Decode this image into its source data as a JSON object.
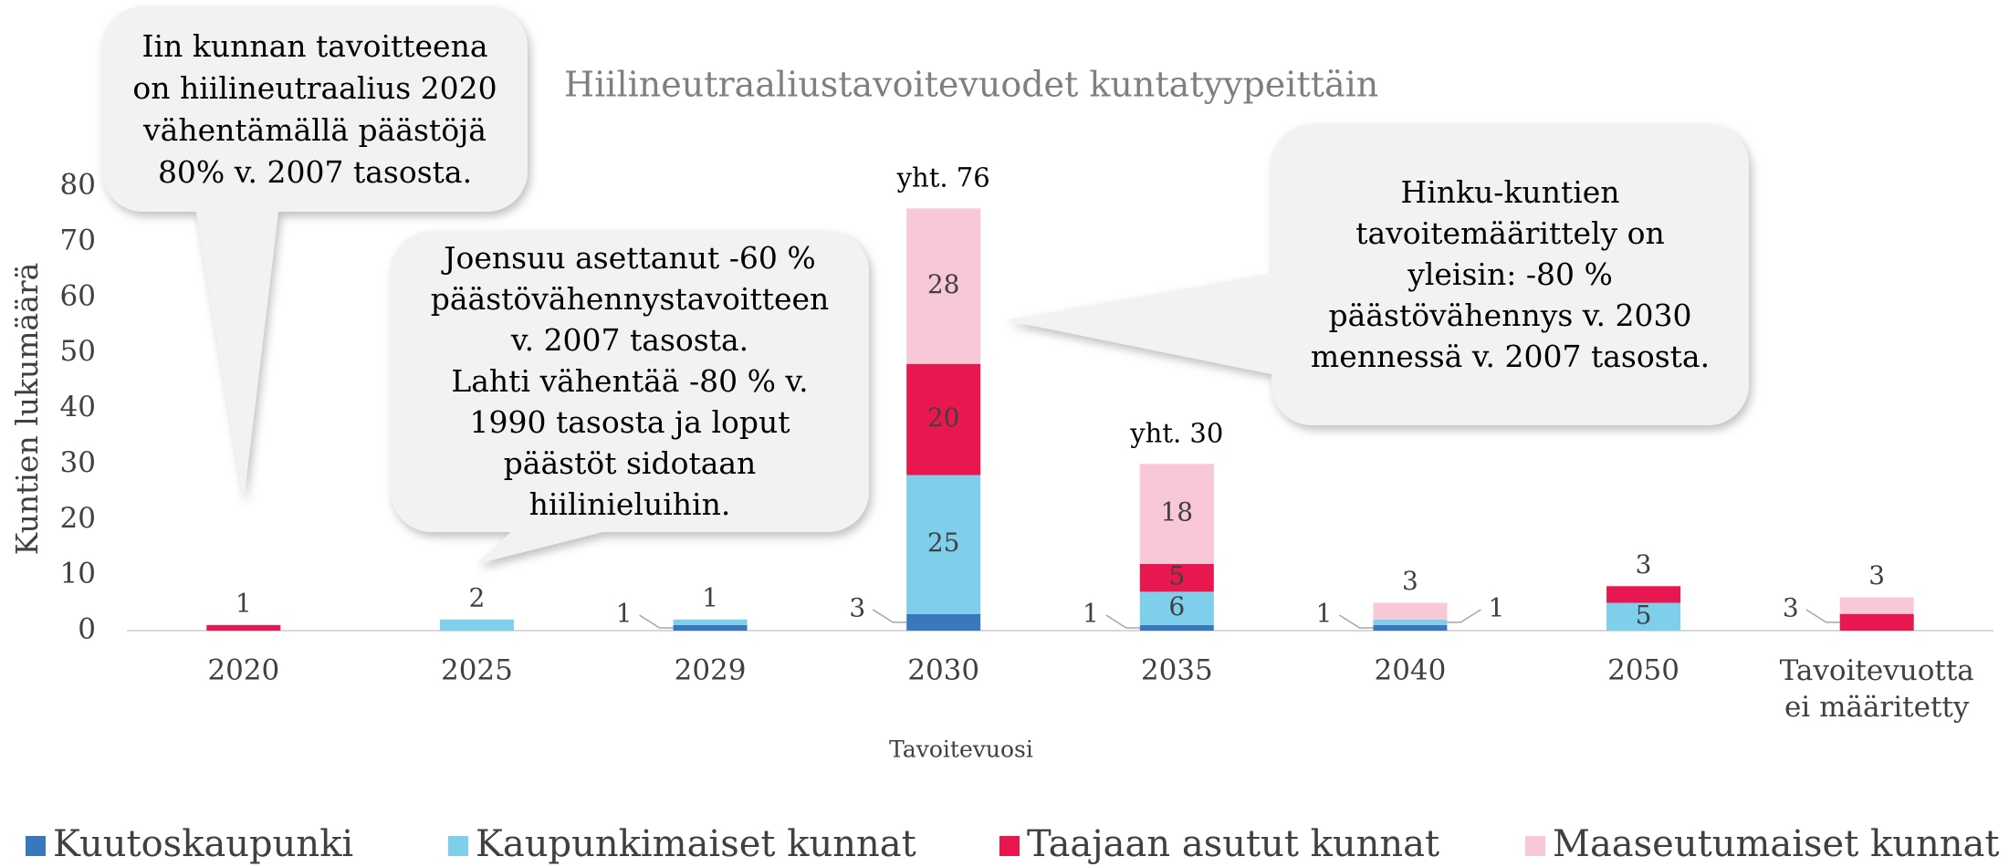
{
  "chart_data": {
    "type": "stacked_bar",
    "title": "Hiilineutraaliustavoitevuodet kuntatyypeittäin",
    "x_label": "Tavoitevuosi",
    "y_label": "Kuntien lukumäärä",
    "categories": [
      "2020",
      "2025",
      "2029",
      "2030",
      "2035",
      "2040",
      "2050",
      "Tavoitevuotta ei määritetty"
    ],
    "series": [
      {
        "name": "Kuutoskaupunki",
        "color": "#3a78bd",
        "values": [
          0,
          0,
          1,
          3,
          1,
          1,
          0,
          0
        ]
      },
      {
        "name": "Kaupunkimaiset kunnat",
        "color": "#7dcfeb",
        "values": [
          0,
          2,
          1,
          25,
          6,
          1,
          5,
          0
        ]
      },
      {
        "name": "Taajaan asutut kunnat",
        "color": "#e8174f",
        "values": [
          1,
          0,
          0,
          20,
          5,
          0,
          3,
          3
        ]
      },
      {
        "name": "Maaseutumaiset kunnat",
        "color": "#f8c8d6",
        "values": [
          0,
          0,
          0,
          28,
          18,
          3,
          0,
          3
        ]
      }
    ],
    "ylim": [
      0,
      80
    ],
    "yticks": [
      0,
      10,
      20,
      30,
      40,
      50,
      60,
      70,
      80
    ],
    "legend": "bottom",
    "totals": [
      {
        "x": "2030",
        "text": "yht. 76",
        "value": 76
      },
      {
        "x": "2035",
        "text": "yht. 30",
        "value": 30
      }
    ],
    "callouts": [
      {
        "lines": [
          "Iin kunnan tavoitteena",
          "on hiilineutraalius 2020",
          "vähentämällä päästöjä",
          "80% v. 2007 tasosta."
        ]
      },
      {
        "lines": [
          "Joensuu asettanut -60 %",
          "päästövähennystavoitteen",
          "v. 2007 tasosta.",
          "Lahti vähentää -80 % v.",
          "1990 tasosta ja loput",
          "päästöt sidotaan",
          "hiilinieluihin."
        ]
      },
      {
        "lines": [
          "Hinku-kuntien",
          "tavoitemäärittely on",
          "yleisin: -80 %",
          "päästövähennys v. 2030",
          "mennessä v. 2007 tasosta."
        ]
      }
    ]
  }
}
